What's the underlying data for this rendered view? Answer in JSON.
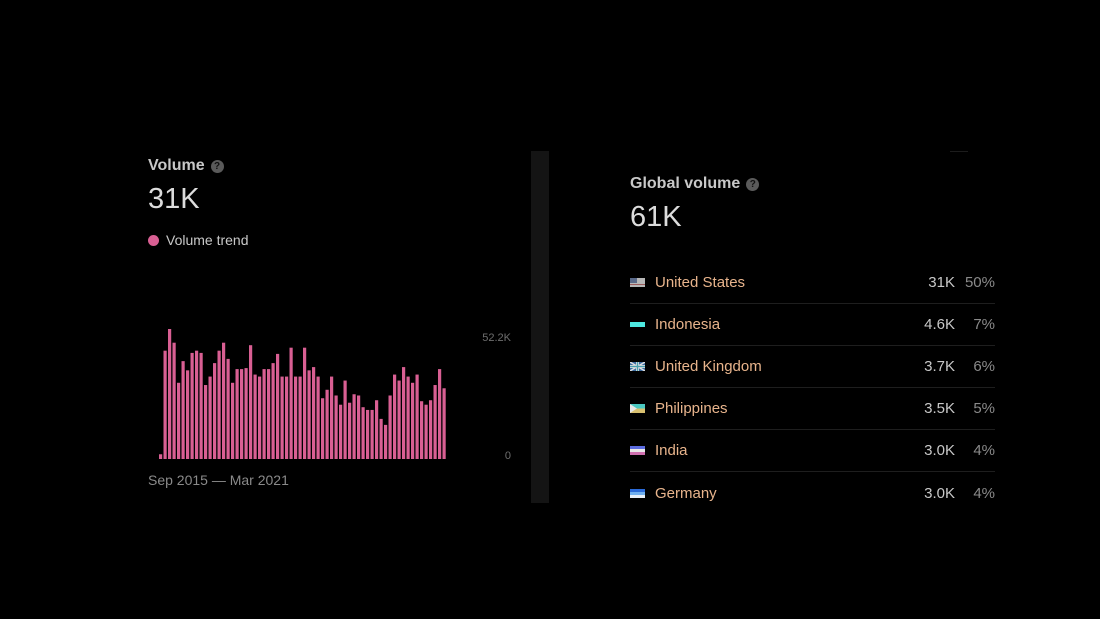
{
  "volume_panel": {
    "title": "Volume",
    "value": "31K",
    "legend_label": "Volume trend",
    "date_range": "Sep 2015 — Mar 2021",
    "help_icon": "question-circle-icon"
  },
  "global_panel": {
    "title": "Global volume",
    "value": "61K",
    "help_icon": "question-circle-icon",
    "countries": [
      {
        "name": "United States",
        "volume": "31K",
        "percent": "50%",
        "flag_icon": "flag-us-icon"
      },
      {
        "name": "Indonesia",
        "volume": "4.6K",
        "percent": "7%",
        "flag_icon": "flag-id-icon"
      },
      {
        "name": "United Kingdom",
        "volume": "3.7K",
        "percent": "6%",
        "flag_icon": "flag-gb-icon"
      },
      {
        "name": "Philippines",
        "volume": "3.5K",
        "percent": "5%",
        "flag_icon": "flag-ph-icon"
      },
      {
        "name": "India",
        "volume": "3.0K",
        "percent": "4%",
        "flag_icon": "flag-in-icon"
      },
      {
        "name": "Germany",
        "volume": "3.0K",
        "percent": "4%",
        "flag_icon": "flag-de-icon"
      }
    ]
  },
  "colors": {
    "bar": "#d95f93",
    "country_name": "#e8b48c",
    "background": "#000000"
  },
  "chart_data": {
    "type": "bar",
    "series": [
      {
        "name": "Volume trend",
        "values": [
          1900,
          43500,
          52200,
          46700,
          30600,
          39300,
          35600,
          42600,
          43500,
          42600,
          29700,
          33100,
          38500,
          43500,
          46700,
          40200,
          30600,
          36100,
          36100,
          36500,
          45700,
          33900,
          33100,
          36100,
          36100,
          38500,
          42200,
          33100,
          33100,
          44700,
          33100,
          33100,
          44700,
          35600,
          36900,
          33100,
          24400,
          27800,
          33100,
          25500,
          21800,
          31500,
          22600,
          26000,
          25500,
          20800,
          19700,
          19700,
          23600,
          16100,
          13700,
          25500,
          33900,
          31500,
          36900,
          33100,
          30600,
          33900,
          23200,
          21800,
          23600,
          29700,
          36100,
          28400
        ]
      }
    ],
    "y_ticks": [
      "52.2K",
      "0"
    ],
    "ylim": [
      0,
      52200
    ]
  }
}
